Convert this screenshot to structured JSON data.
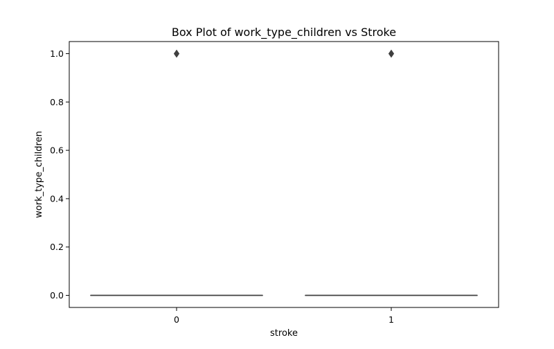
{
  "chart_data": {
    "type": "box",
    "title": "Box Plot of work_type_children vs Stroke",
    "xlabel": "stroke",
    "ylabel": "work_type_children",
    "categories": [
      "0",
      "1"
    ],
    "ylim": [
      -0.05,
      1.05
    ],
    "yticks": [
      0.0,
      0.2,
      0.4,
      0.6,
      0.8,
      1.0
    ],
    "ytick_labels": [
      "0.0",
      "0.2",
      "0.4",
      "0.6",
      "0.8",
      "1.0"
    ],
    "grid": false,
    "boxes": [
      {
        "category": "0",
        "min": 0,
        "q1": 0,
        "median": 0,
        "q3": 0,
        "max": 0,
        "outliers": [
          1.0
        ]
      },
      {
        "category": "1",
        "min": 0,
        "q1": 0,
        "median": 0,
        "q3": 0,
        "max": 0,
        "outliers": [
          1.0
        ]
      }
    ],
    "colors": {
      "box_line": "#3f3f3f",
      "outlier_fill": "#3f3f3f",
      "axes": "#000000"
    }
  }
}
